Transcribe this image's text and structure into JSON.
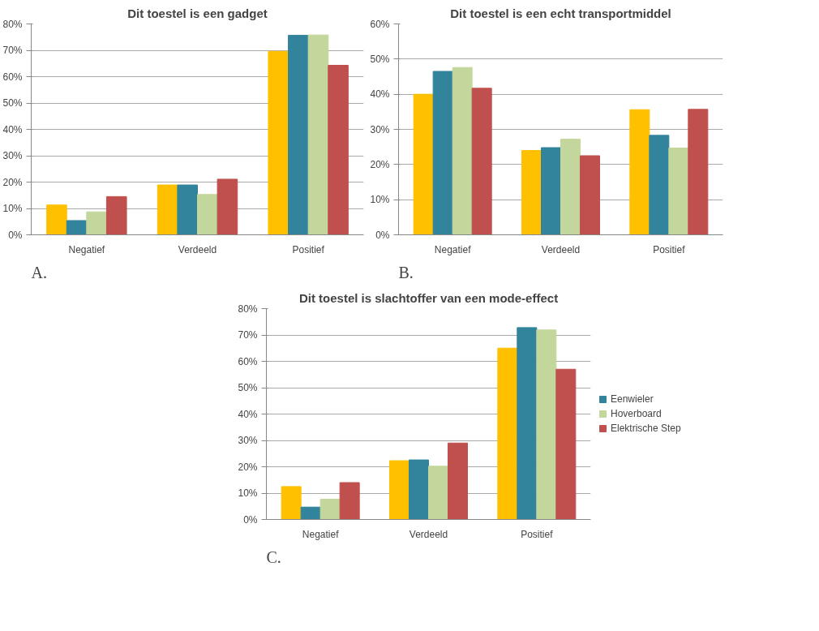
{
  "chart_data": [
    {
      "type": "bar",
      "title": "Dit toestel is een gadget",
      "categories": [
        "Negatief",
        "Verdeeld",
        "Positief"
      ],
      "annotations": [
        "A."
      ],
      "ylim": [
        0,
        80
      ],
      "yticks": [
        {
          "value": 0,
          "label": "0%"
        },
        {
          "value": 10,
          "label": "10%"
        },
        {
          "value": 20,
          "label": "20%"
        },
        {
          "value": 30,
          "label": "30%"
        },
        {
          "value": 40,
          "label": "40%"
        },
        {
          "value": 50,
          "label": "50%"
        },
        {
          "value": 60,
          "label": "60%"
        },
        {
          "value": 70,
          "label": "70%"
        },
        {
          "value": 80,
          "label": "80%"
        }
      ],
      "grid": "y",
      "series": [
        {
          "color": "#ffc000",
          "values": [
            11.3,
            18.9,
            69.6
          ]
        },
        {
          "color": "#31849b",
          "values": [
            5.4,
            18.9,
            75.7
          ]
        },
        {
          "color": "#c3d69b",
          "values": [
            8.7,
            15.3,
            75.8
          ]
        },
        {
          "color": "#c0504d",
          "values": [
            14.5,
            21.1,
            64.3
          ]
        }
      ]
    },
    {
      "type": "bar",
      "title": "Dit toestel is een echt transportmiddel",
      "categories": [
        "Negatief",
        "Verdeeld",
        "Positief"
      ],
      "annotations": [
        "B."
      ],
      "ylim": [
        0,
        60
      ],
      "yticks": [
        {
          "value": 0,
          "label": "0%"
        },
        {
          "value": 10,
          "label": "10%"
        },
        {
          "value": 20,
          "label": "20%"
        },
        {
          "value": 30,
          "label": "30%"
        },
        {
          "value": 40,
          "label": "40%"
        },
        {
          "value": 50,
          "label": "50%"
        },
        {
          "value": 60,
          "label": "60%"
        }
      ],
      "grid": "y",
      "series": [
        {
          "color": "#ffc000",
          "values": [
            40.0,
            24.0,
            35.6
          ]
        },
        {
          "color": "#31849b",
          "values": [
            46.5,
            24.8,
            28.3
          ]
        },
        {
          "color": "#c3d69b",
          "values": [
            47.6,
            27.2,
            24.7
          ]
        },
        {
          "color": "#c0504d",
          "values": [
            41.7,
            22.5,
            35.7
          ]
        }
      ]
    },
    {
      "type": "bar",
      "title": "Dit toestel is slachtoffer van een mode-effect",
      "categories": [
        "Negatief",
        "Verdeeld",
        "Positief"
      ],
      "annotations": [
        "C."
      ],
      "ylim": [
        0,
        80
      ],
      "yticks": [
        {
          "value": 0,
          "label": "0%"
        },
        {
          "value": 10,
          "label": "10%"
        },
        {
          "value": 20,
          "label": "20%"
        },
        {
          "value": 30,
          "label": "30%"
        },
        {
          "value": 40,
          "label": "40%"
        },
        {
          "value": 50,
          "label": "50%"
        },
        {
          "value": 60,
          "label": "60%"
        },
        {
          "value": 70,
          "label": "70%"
        },
        {
          "value": 80,
          "label": "80%"
        }
      ],
      "grid": "y",
      "legend": "right",
      "series": [
        {
          "color": "#ffc000",
          "values": [
            12.5,
            22.3,
            65.0
          ]
        },
        {
          "name": "Eenwieler",
          "color": "#31849b",
          "values": [
            4.7,
            22.6,
            72.8
          ]
        },
        {
          "name": "Hoverboard",
          "color": "#c3d69b",
          "values": [
            7.7,
            20.2,
            71.9
          ]
        },
        {
          "name": "Elektrische Step",
          "color": "#c0504d",
          "values": [
            14.0,
            29.0,
            57.0
          ]
        }
      ]
    }
  ]
}
